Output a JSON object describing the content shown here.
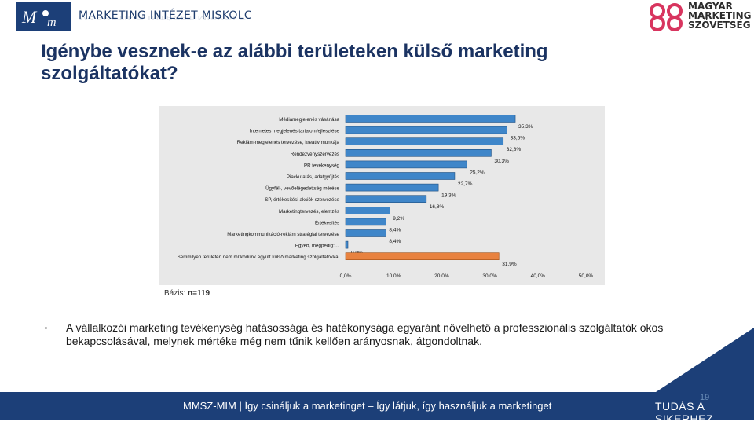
{
  "header": {
    "org_name": "MARKETING INTÉZET MISKOLC",
    "partner_line1": "MAGYAR",
    "partner_line2": "MARKETING",
    "partner_line3": "SZÖVETSÉG"
  },
  "title": "Igénybe vesznek-e az alábbi területeken külső marketing szolgáltatókat?",
  "chart_data": {
    "type": "bar",
    "orientation": "horizontal",
    "categories": [
      "Médiamegjelenés vásárlása",
      "Internetes megjelenés tartalomfejlesztése",
      "Reklám-megjelenés tervezése, kreatív munkája",
      "Rendezvényszervezés",
      "PR tevékenység",
      "Piackutatás, adatgyűjtés",
      "Ügyfél-, vevőelégedettség mérése",
      "SP, értékesítési akciók szervezése",
      "Marketingtervezés, elemzés",
      "Értékesítés",
      "Marketingkommunikáció-reklám stratégiai tervezése",
      "Egyéb, mégpedig:…",
      "Semmilyen területen nem működünk együtt külső marketing szolgáltatókkal"
    ],
    "values": [
      35.3,
      33.6,
      32.8,
      30.3,
      25.2,
      22.7,
      19.3,
      16.8,
      9.2,
      8.4,
      8.4,
      0.0,
      31.9
    ],
    "value_labels": [
      "35,3%",
      "33,6%",
      "32,8%",
      "30,3%",
      "25,2%",
      "22,7%",
      "19,3%",
      "16,8%",
      "9,2%",
      "8,4%",
      "8,4%",
      "0,0%",
      "31,9%"
    ],
    "xlim": [
      0,
      50
    ],
    "x_ticks": [
      "0,0%",
      "10,0%",
      "20,0%",
      "30,0%",
      "40,0%",
      "50,0%"
    ],
    "colors": {
      "bar": "#3f86c9",
      "highlight": "#e8823f",
      "bar_edge": "#1f4f80",
      "highlight_edge": "#9e4c12"
    },
    "highlight_index": 12,
    "grid": false
  },
  "base_note": {
    "label": "Bázis:",
    "value": "n=119"
  },
  "body": {
    "bullet": "▪",
    "text": "A vállalkozói marketing tevékenység hatásossága és hatékonysága egyaránt növelhető a professzionális szolgáltatók okos bekapcsolásával, melynek mértéke még nem tűnik kellően arányosnak, átgondoltnak."
  },
  "footer": {
    "text": "MMSZ-MIM |  Így csináljuk a marketinget – Így látjuk, így használjuk a marketinget",
    "right": "TUDÁS A SIKERHEZ",
    "page": "19"
  }
}
